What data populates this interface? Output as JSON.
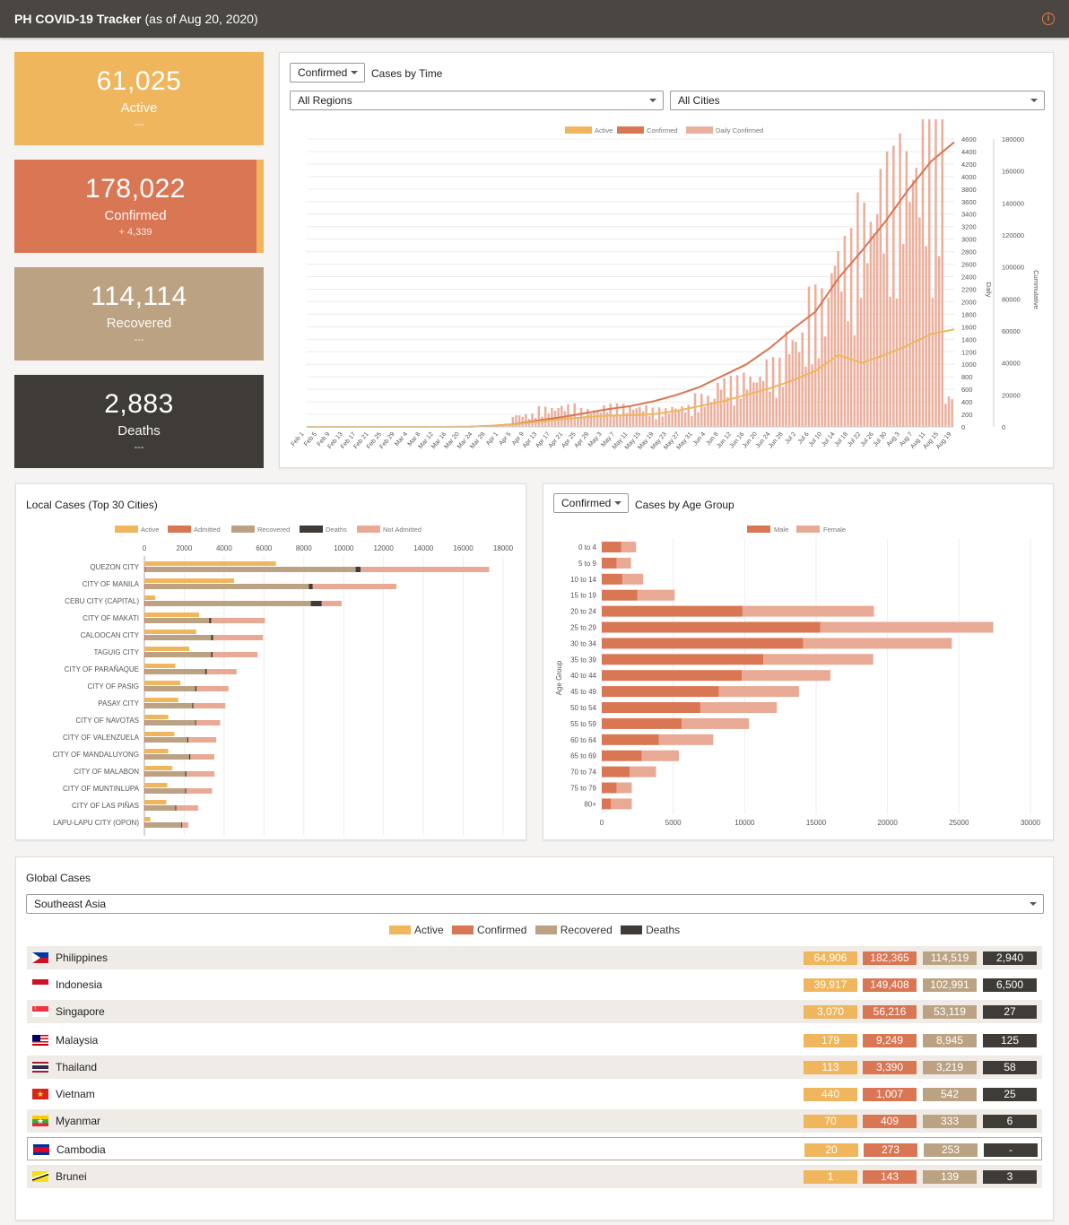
{
  "header": {
    "title": "PH COVID-19 Tracker",
    "subtitle": "(as of Aug 20, 2020)",
    "info_icon": "info-icon"
  },
  "colors": {
    "active": "#efb65d",
    "confirmed": "#d97653",
    "recovered": "#bba283",
    "deaths": "#3f3b37",
    "not_admitted": "#e8a995",
    "daily": "#e9b09e"
  },
  "cards": [
    {
      "value": "61,025",
      "label": "Active",
      "sub": "---"
    },
    {
      "value": "178,022",
      "label": "Confirmed",
      "sub": "+ 4,339"
    },
    {
      "value": "114,114",
      "label": "Recovered",
      "sub": "---"
    },
    {
      "value": "2,883",
      "label": "Deaths",
      "sub": "---"
    }
  ],
  "time_panel": {
    "metric_select": "Confirmed",
    "title": "Cases by Time",
    "region_select": "All Regions",
    "city_select": "All Cities",
    "legend": [
      "Active",
      "Confirmed",
      "Daily Confirmed"
    ],
    "y_left_label": "Daily",
    "y_right_label": "Cummulative"
  },
  "local_panel": {
    "title": "Local Cases (Top 30 Cities)",
    "legend": [
      "Active",
      "Admitted",
      "Recovered",
      "Deaths",
      "Not Admitted"
    ]
  },
  "age_panel": {
    "metric_select": "Confirmed",
    "title": "Cases by Age Group",
    "legend": [
      "Male",
      "Female"
    ],
    "y_label": "Age Group"
  },
  "global_panel": {
    "title": "Global Cases",
    "region_select": "Southeast Asia",
    "legend": [
      "Active",
      "Confirmed",
      "Recovered",
      "Deaths"
    ],
    "countries": [
      {
        "name": "Philippines",
        "active": "64,906",
        "confirmed": "182,365",
        "recovered": "114,519",
        "deaths": "2,940",
        "flag": "philippines-flag-icon"
      },
      {
        "name": "Indonesia",
        "active": "39,917",
        "confirmed": "149,408",
        "recovered": "102,991",
        "deaths": "6,500",
        "flag": "indonesia-flag-icon"
      },
      {
        "name": "Singapore",
        "active": "3,070",
        "confirmed": "56,216",
        "recovered": "53,119",
        "deaths": "27",
        "flag": "singapore-flag-icon"
      },
      {
        "name": "Malaysia",
        "active": "179",
        "confirmed": "9,249",
        "recovered": "8,945",
        "deaths": "125",
        "flag": "malaysia-flag-icon"
      },
      {
        "name": "Thailand",
        "active": "113",
        "confirmed": "3,390",
        "recovered": "3,219",
        "deaths": "58",
        "flag": "thailand-flag-icon"
      },
      {
        "name": "Vietnam",
        "active": "440",
        "confirmed": "1,007",
        "recovered": "542",
        "deaths": "25",
        "flag": "vietnam-flag-icon"
      },
      {
        "name": "Myanmar",
        "active": "70",
        "confirmed": "409",
        "recovered": "333",
        "deaths": "6",
        "flag": "myanmar-flag-icon"
      },
      {
        "name": "Cambodia",
        "active": "20",
        "confirmed": "273",
        "recovered": "253",
        "deaths": "-",
        "flag": "cambodia-flag-icon"
      },
      {
        "name": "Brunei",
        "active": "1",
        "confirmed": "143",
        "recovered": "139",
        "deaths": "3",
        "flag": "brunei-flag-icon"
      }
    ]
  },
  "chart_data": [
    {
      "type": "bar",
      "title": "Cases by Time",
      "x_tick_labels": [
        "Feb 1",
        "Feb 5",
        "Feb 9",
        "Feb 13",
        "Feb 17",
        "Feb 21",
        "Feb 25",
        "Feb 29",
        "Mar 4",
        "Mar 8",
        "Mar 12",
        "Mar 16",
        "Mar 20",
        "Mar 24",
        "Mar 28",
        "Apr 1",
        "Apr 5",
        "Apr 9",
        "Apr 13",
        "Apr 17",
        "Apr 21",
        "Apr 25",
        "Apr 29",
        "May 3",
        "May 7",
        "May 11",
        "May 15",
        "May 19",
        "May 23",
        "May 27",
        "May 31",
        "Jun 4",
        "Jun 8",
        "Jun 12",
        "Jun 16",
        "Jun 20",
        "Jun 24",
        "Jun 28",
        "Jul 2",
        "Jul 6",
        "Jul 10",
        "Jul 14",
        "Jul 18",
        "Jul 22",
        "Jul 26",
        "Jul 30",
        "Aug 3",
        "Aug 7",
        "Aug 11",
        "Aug 15",
        "Aug 19"
      ],
      "y_left_ticks": [
        "0",
        "200",
        "400",
        "600",
        "800",
        "1000",
        "1200",
        "1400",
        "1600",
        "1800",
        "2000",
        "2200",
        "2400",
        "2600",
        "2800",
        "3000",
        "3200",
        "3400",
        "3600",
        "3800",
        "4000",
        "4200",
        "4400",
        "4600"
      ],
      "y_right_ticks": [
        "0",
        "20000",
        "40000",
        "60000",
        "80000",
        "100000",
        "120000",
        "140000",
        "160000",
        "180000"
      ],
      "ylim_daily": [
        0,
        4600
      ],
      "ylim_cumulative": [
        0,
        180000
      ],
      "series": [
        {
          "name": "Daily Confirmed",
          "type": "bar",
          "axis": "left",
          "weekly_avg": [
            0,
            0,
            0,
            0,
            0,
            0,
            0,
            0,
            15,
            150,
            230,
            260,
            210,
            260,
            250,
            215,
            250,
            370,
            570,
            620,
            770,
            1120,
            1570,
            2200,
            2600,
            3100,
            3300,
            3600,
            380
          ]
        },
        {
          "name": "Confirmed",
          "type": "line",
          "axis": "right",
          "weekly": [
            0,
            3,
            3,
            3,
            3,
            3,
            10,
            100,
            700,
            1700,
            4000,
            6000,
            8500,
            11000,
            13000,
            16000,
            20000,
            25000,
            32000,
            39000,
            49000,
            61000,
            72000,
            93000,
            110000,
            128000,
            148000,
            166000,
            178000
          ]
        },
        {
          "name": "Active",
          "type": "line",
          "axis": "right",
          "weekly": [
            0,
            2,
            2,
            2,
            2,
            2,
            8,
            90,
            600,
            1500,
            3200,
            4700,
            6000,
            7000,
            7300,
            8000,
            10000,
            13000,
            16000,
            20000,
            24000,
            29000,
            35000,
            45000,
            40000,
            45000,
            51000,
            58000,
            61000
          ]
        }
      ]
    },
    {
      "type": "bar",
      "title": "Local Cases (Top 30 Cities)",
      "orientation": "horizontal",
      "x_ticks": [
        "0",
        "2000",
        "4000",
        "6000",
        "8000",
        "10000",
        "12000",
        "14000",
        "16000",
        "18000"
      ],
      "xlim": [
        0,
        18000
      ],
      "categories": [
        "QUEZON CITY",
        "CITY OF MANILA",
        "CEBU CITY (CAPITAL)",
        "CITY OF MAKATI",
        "CALOOCAN CITY",
        "TAGUIG CITY",
        "CITY OF PARAÑAQUE",
        "CITY OF PASIG",
        "PASAY CITY",
        "CITY OF NAVOTAS",
        "CITY OF VALENZUELA",
        "CITY OF MANDALUYONG",
        "CITY OF MALABON",
        "CITY OF MUNTINLUPA",
        "CITY OF LAS PIÑAS",
        "LAPU-LAPU CITY (OPON)"
      ],
      "series": [
        {
          "name": "Active",
          "values": [
            6600,
            4500,
            550,
            2750,
            2600,
            2250,
            1550,
            1800,
            1700,
            1200,
            1500,
            1200,
            1400,
            1150,
            1100,
            300
          ]
        },
        {
          "name": "Admitted",
          "values": [
            100,
            50,
            50,
            50,
            50,
            50,
            50,
            50,
            50,
            50,
            50,
            50,
            50,
            50,
            50,
            50
          ]
        },
        {
          "name": "Recovered",
          "values": [
            10500,
            8200,
            8300,
            3200,
            3300,
            3300,
            3000,
            2500,
            2350,
            2500,
            2100,
            2200,
            2000,
            2000,
            1500,
            1800
          ]
        },
        {
          "name": "Deaths",
          "values": [
            250,
            200,
            550,
            100,
            100,
            80,
            80,
            70,
            60,
            50,
            60,
            60,
            60,
            50,
            50,
            50
          ]
        },
        {
          "name": "Not Admitted",
          "values": [
            6450,
            4200,
            1000,
            2700,
            2500,
            2250,
            1500,
            1600,
            1600,
            1200,
            1400,
            1200,
            1400,
            1300,
            1100,
            300
          ]
        }
      ]
    },
    {
      "type": "bar",
      "title": "Cases by Age Group",
      "orientation": "horizontal",
      "ylabel": "Age Group",
      "x_ticks": [
        "0",
        "5000",
        "10000",
        "15000",
        "20000",
        "25000",
        "30000"
      ],
      "xlim": [
        0,
        30000
      ],
      "categories": [
        "0 to 4",
        "5 to 9",
        "10 to 14",
        "15 to 19",
        "20 to 24",
        "25 to 29",
        "30 to 34",
        "35 to 39",
        "40 to 44",
        "45 to 49",
        "50 to 54",
        "55 to 59",
        "60 to 64",
        "65 to 69",
        "70 to 74",
        "75 to 79",
        "80+"
      ],
      "series": [
        {
          "name": "Male",
          "values": [
            1350,
            1050,
            1450,
            2500,
            9850,
            15300,
            14100,
            11300,
            9800,
            8200,
            6900,
            5600,
            4000,
            2800,
            1950,
            1050,
            650
          ]
        },
        {
          "name": "Female",
          "values": [
            1050,
            1000,
            1450,
            2600,
            9200,
            12100,
            10400,
            7700,
            6200,
            5600,
            5350,
            4700,
            3800,
            2600,
            1850,
            1050,
            1450
          ]
        }
      ]
    }
  ]
}
